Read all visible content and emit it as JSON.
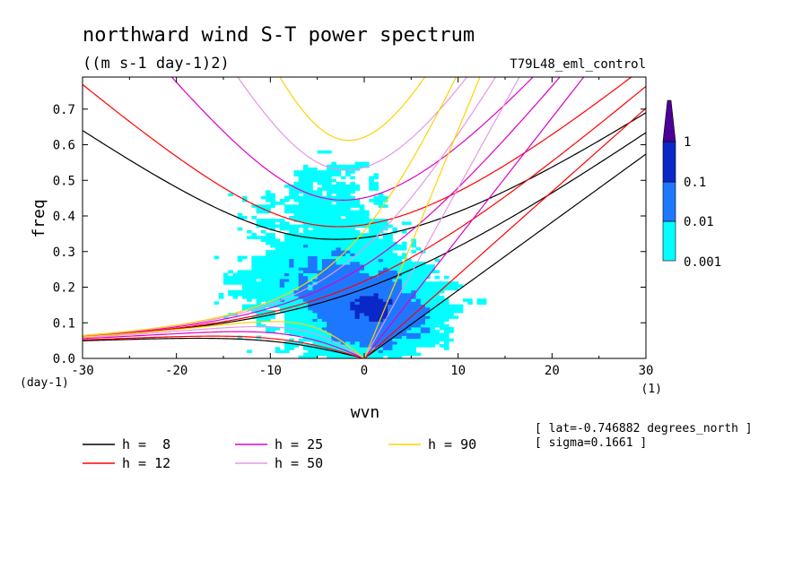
{
  "chart_data": {
    "type": "contour",
    "title": "northward wind S-T power spectrum",
    "units": "((m s-1 day-1)2)",
    "experiment": "T79L48_eml_control",
    "xlabel": "wvn",
    "ylabel": "freq",
    "x_unit": "(1)",
    "y_unit": "(day-1)",
    "xlim": [
      -30,
      30
    ],
    "ylim": [
      0,
      0.79
    ],
    "x_ticks": [
      -30,
      -20,
      -10,
      0,
      10,
      20,
      30
    ],
    "x_tick_labels": [
      "-30",
      "-20",
      "-10",
      "0",
      "10",
      "20",
      "30"
    ],
    "y_ticks": [
      0,
      0.1,
      0.2,
      0.3,
      0.4,
      0.5,
      0.6,
      0.7
    ],
    "y_tick_labels": [
      "0.0",
      "0.1",
      "0.2",
      "0.3",
      "0.4",
      "0.5",
      "0.6",
      "0.7"
    ],
    "colorbar": {
      "levels": [
        "0.001",
        "0.01",
        "0.1",
        "1"
      ],
      "colors": [
        "#00ffff",
        "#1e78ff",
        "#0a28c8",
        "#4b0096"
      ]
    },
    "dispersion_curves": [
      {
        "label": "h =  8",
        "h": 8,
        "color": "#000000"
      },
      {
        "label": "h = 12",
        "h": 12,
        "color": "#ff0000"
      },
      {
        "label": "h = 25",
        "h": 25,
        "color": "#dc00c8"
      },
      {
        "label": "h = 50",
        "h": 50,
        "color": "#e696e6"
      },
      {
        "label": "h = 90",
        "h": 90,
        "color": "#ffd200"
      }
    ],
    "info_lines": [
      "[ lat=-0.746882 degrees_north ]",
      "[ sigma=0.1661 ]"
    ]
  }
}
